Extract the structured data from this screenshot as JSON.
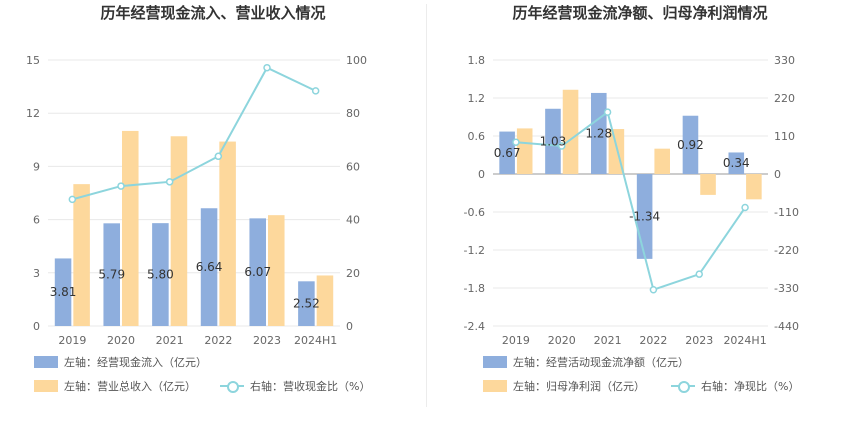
{
  "colors": {
    "blue": "#8eaedd",
    "orange": "#fdd89c",
    "line": "#8dd5dd",
    "grid": "#e8e8e8",
    "text": "#333333"
  },
  "chart_data": [
    {
      "type": "bar",
      "title": "历年经营现金流入、营业收入情况",
      "categories": [
        "2019",
        "2020",
        "2021",
        "2022",
        "2023",
        "2024H1"
      ],
      "left_ticks": [
        "15",
        "12",
        "9",
        "6",
        "3",
        "0"
      ],
      "right_ticks": [
        "100",
        "80",
        "60",
        "40",
        "20",
        "0"
      ],
      "ylim_left": [
        0,
        15
      ],
      "ylim_right": [
        0,
        100
      ],
      "series": [
        {
          "name": "左轴：经营现金流入（亿元）",
          "axis": "left",
          "kind": "bar",
          "color": "#8eaedd",
          "values": [
            3.81,
            5.79,
            5.8,
            6.64,
            6.07,
            2.52
          ],
          "labels": [
            "3.81",
            "5.79",
            "5.80",
            "6.64",
            "6.07",
            "2.52"
          ]
        },
        {
          "name": "左轴：营业总收入（亿元）",
          "axis": "left",
          "kind": "bar",
          "color": "#fdd89c",
          "values": [
            8.0,
            11.0,
            10.7,
            10.4,
            6.25,
            2.85
          ]
        },
        {
          "name": "右轴：营收现金比（%）",
          "axis": "right",
          "kind": "line",
          "color": "#8dd5dd",
          "values": [
            47.6,
            52.6,
            54.2,
            63.8,
            97.1,
            88.4
          ]
        }
      ]
    },
    {
      "type": "bar",
      "title": "历年经营现金流净额、归母净利润情况",
      "categories": [
        "2019",
        "2020",
        "2021",
        "2022",
        "2023",
        "2024H1"
      ],
      "left_ticks": [
        "1.8",
        "1.2",
        "0.6",
        "0",
        "-0.6",
        "-1.2",
        "-1.8",
        "-2.4"
      ],
      "right_ticks": [
        "330",
        "220",
        "110",
        "0",
        "-110",
        "-220",
        "-330",
        "-440"
      ],
      "ylim_left": [
        -2.4,
        1.8
      ],
      "ylim_right": [
        -440,
        330
      ],
      "series": [
        {
          "name": "左轴：经营活动现金流净额（亿元）",
          "axis": "left",
          "kind": "bar",
          "color": "#8eaedd",
          "values": [
            0.67,
            1.03,
            1.28,
            -1.34,
            0.92,
            0.34
          ],
          "labels": [
            "0.67",
            "1.03",
            "1.28",
            "-1.34",
            "0.92",
            "0.34"
          ]
        },
        {
          "name": "左轴：归母净利润（亿元）",
          "axis": "left",
          "kind": "bar",
          "color": "#fdd89c",
          "values": [
            0.72,
            1.33,
            0.71,
            0.4,
            -0.33,
            -0.4
          ]
        },
        {
          "name": "右轴：净现比（%）",
          "axis": "right",
          "kind": "line",
          "color": "#8dd5dd",
          "values": [
            92,
            81,
            179,
            -335,
            -290,
            -97
          ]
        }
      ]
    }
  ]
}
